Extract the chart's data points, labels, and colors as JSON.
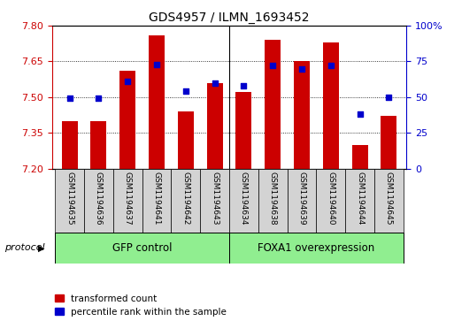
{
  "title": "GDS4957 / ILMN_1693452",
  "samples": [
    "GSM1194635",
    "GSM1194636",
    "GSM1194637",
    "GSM1194641",
    "GSM1194642",
    "GSM1194643",
    "GSM1194634",
    "GSM1194638",
    "GSM1194639",
    "GSM1194640",
    "GSM1194644",
    "GSM1194645"
  ],
  "red_values": [
    7.4,
    7.4,
    7.61,
    7.76,
    7.44,
    7.56,
    7.52,
    7.74,
    7.65,
    7.73,
    7.3,
    7.42
  ],
  "blue_values": [
    49,
    49,
    61,
    73,
    54,
    60,
    58,
    72,
    70,
    72,
    38,
    50
  ],
  "ymin": 7.2,
  "ymax": 7.8,
  "y2min": 0,
  "y2max": 100,
  "yticks": [
    7.2,
    7.35,
    7.5,
    7.65,
    7.8
  ],
  "y2ticks": [
    0,
    25,
    50,
    75,
    100
  ],
  "y2tick_labels": [
    "0",
    "25",
    "50",
    "75",
    "100%"
  ],
  "groups": [
    {
      "label": "GFP control",
      "start": 0,
      "end": 5
    },
    {
      "label": "FOXA1 overexpression",
      "start": 6,
      "end": 11
    }
  ],
  "group_color": "#90ee90",
  "bar_color": "#cc0000",
  "dot_color": "#0000cc",
  "bar_width": 0.55,
  "bar_bottom": 7.2,
  "legend_labels": [
    "transformed count",
    "percentile rank within the sample"
  ],
  "protocol_label": "protocol",
  "tick_color_left": "#cc0000",
  "tick_color_right": "#0000cc",
  "label_area_color": "#d3d3d3"
}
